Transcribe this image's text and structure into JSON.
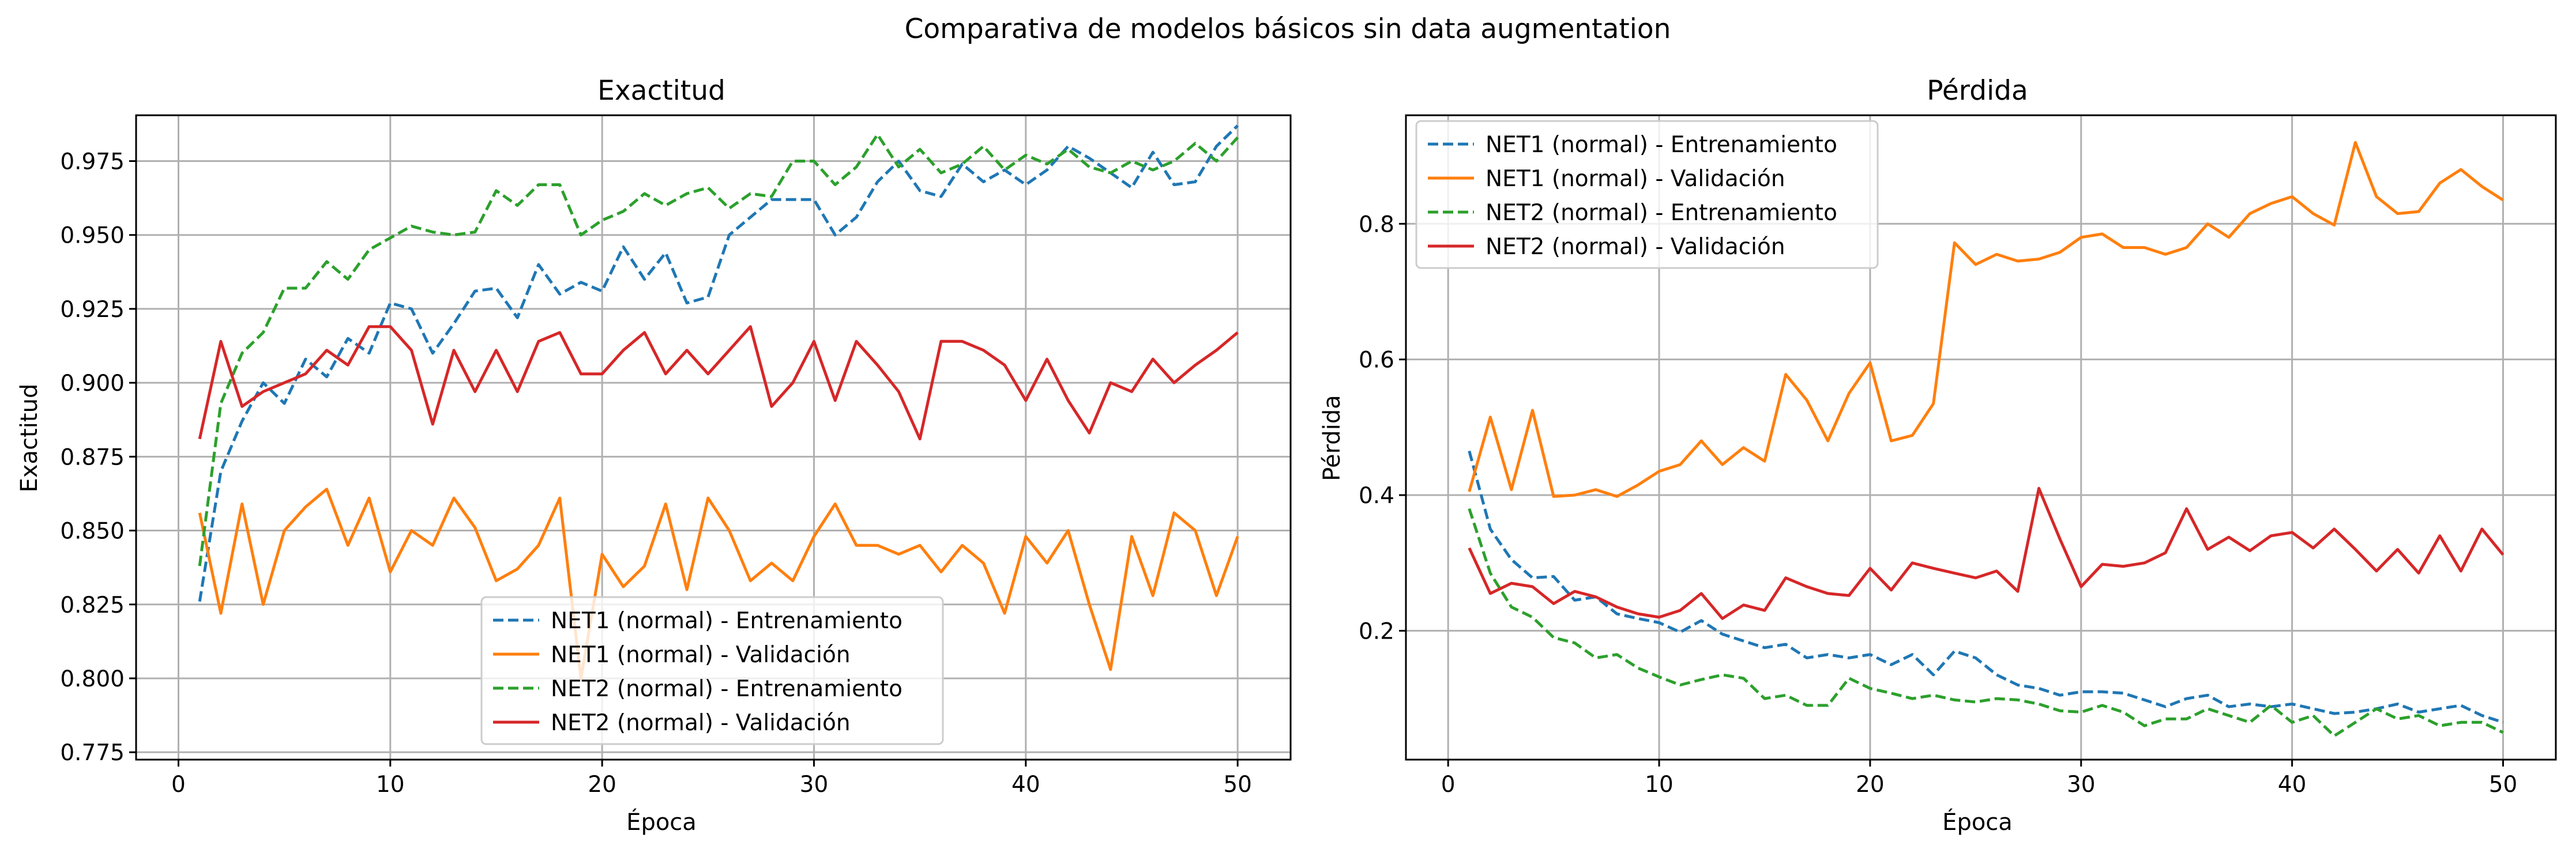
{
  "figure_title": "Comparativa de modelos básicos sin data augmentation",
  "chart_data": [
    {
      "type": "line",
      "title": "Exactitud",
      "xlabel": "Época",
      "ylabel": "Exactitud",
      "xlim": [
        -2,
        52.5
      ],
      "ylim": [
        0.7725,
        0.9905
      ],
      "xticks": [
        0,
        10,
        20,
        30,
        40,
        50
      ],
      "yticks": [
        0.775,
        0.8,
        0.825,
        0.85,
        0.875,
        0.9,
        0.925,
        0.95,
        0.975
      ],
      "ytick_labels": [
        "0.775",
        "0.800",
        "0.825",
        "0.850",
        "0.875",
        "0.900",
        "0.925",
        "0.950",
        "0.975"
      ],
      "grid": true,
      "legend_position": "lower-center",
      "x": [
        1,
        2,
        3,
        4,
        5,
        6,
        7,
        8,
        9,
        10,
        11,
        12,
        13,
        14,
        15,
        16,
        17,
        18,
        19,
        20,
        21,
        22,
        23,
        24,
        25,
        26,
        27,
        28,
        29,
        30,
        31,
        32,
        33,
        34,
        35,
        36,
        37,
        38,
        39,
        40,
        41,
        42,
        43,
        44,
        45,
        46,
        47,
        48,
        49,
        50
      ],
      "series": [
        {
          "name": "NET1 (normal) - Entrenamiento",
          "color": "#1f77b4",
          "dash": true,
          "values": [
            0.826,
            0.87,
            0.887,
            0.9,
            0.893,
            0.908,
            0.902,
            0.915,
            0.91,
            0.927,
            0.925,
            0.91,
            0.92,
            0.931,
            0.932,
            0.922,
            0.94,
            0.93,
            0.934,
            0.931,
            0.946,
            0.935,
            0.944,
            0.927,
            0.929,
            0.95,
            0.956,
            0.962,
            0.962,
            0.962,
            0.95,
            0.956,
            0.968,
            0.975,
            0.965,
            0.963,
            0.974,
            0.968,
            0.972,
            0.967,
            0.972,
            0.98,
            0.976,
            0.971,
            0.966,
            0.978,
            0.967,
            0.968,
            0.98,
            0.987
          ]
        },
        {
          "name": "NET1 (normal) - Validación",
          "color": "#ff7f0e",
          "dash": false,
          "values": [
            0.856,
            0.822,
            0.859,
            0.825,
            0.85,
            0.858,
            0.864,
            0.845,
            0.861,
            0.836,
            0.85,
            0.845,
            0.861,
            0.851,
            0.833,
            0.837,
            0.845,
            0.861,
            0.8,
            0.842,
            0.831,
            0.838,
            0.859,
            0.83,
            0.861,
            0.85,
            0.833,
            0.839,
            0.833,
            0.848,
            0.859,
            0.845,
            0.845,
            0.842,
            0.845,
            0.836,
            0.845,
            0.839,
            0.822,
            0.848,
            0.839,
            0.85,
            0.825,
            0.803,
            0.848,
            0.828,
            0.856,
            0.85,
            0.828,
            0.848
          ]
        },
        {
          "name": "NET2 (normal) - Entrenamiento",
          "color": "#2ca02c",
          "dash": true,
          "values": [
            0.838,
            0.893,
            0.91,
            0.917,
            0.932,
            0.932,
            0.941,
            0.935,
            0.945,
            0.949,
            0.953,
            0.951,
            0.95,
            0.951,
            0.965,
            0.96,
            0.967,
            0.967,
            0.95,
            0.955,
            0.958,
            0.964,
            0.96,
            0.964,
            0.966,
            0.959,
            0.964,
            0.963,
            0.975,
            0.975,
            0.967,
            0.973,
            0.984,
            0.973,
            0.979,
            0.971,
            0.974,
            0.98,
            0.972,
            0.977,
            0.974,
            0.979,
            0.973,
            0.971,
            0.975,
            0.972,
            0.975,
            0.981,
            0.975,
            0.983
          ]
        },
        {
          "name": "NET2 (normal) - Validación",
          "color": "#d62728",
          "dash": false,
          "values": [
            0.881,
            0.914,
            0.892,
            0.897,
            0.9,
            0.903,
            0.911,
            0.906,
            0.919,
            0.919,
            0.911,
            0.886,
            0.911,
            0.897,
            0.911,
            0.897,
            0.914,
            0.917,
            0.903,
            0.903,
            0.911,
            0.917,
            0.903,
            0.911,
            0.903,
            0.911,
            0.919,
            0.892,
            0.9,
            0.914,
            0.894,
            0.914,
            0.906,
            0.897,
            0.881,
            0.914,
            0.914,
            0.911,
            0.906,
            0.894,
            0.908,
            0.894,
            0.883,
            0.9,
            0.897,
            0.908,
            0.9,
            0.906,
            0.911,
            0.917
          ]
        }
      ]
    },
    {
      "type": "line",
      "title": "Pérdida",
      "xlabel": "Época",
      "ylabel": "Pérdida",
      "xlim": [
        -2,
        52.5
      ],
      "ylim": [
        0.01,
        0.96
      ],
      "xticks": [
        0,
        10,
        20,
        30,
        40,
        50
      ],
      "yticks": [
        0.2,
        0.4,
        0.6,
        0.8
      ],
      "ytick_labels": [
        "0.2",
        "0.4",
        "0.6",
        "0.8"
      ],
      "grid": true,
      "legend_position": "upper-left",
      "x": [
        1,
        2,
        3,
        4,
        5,
        6,
        7,
        8,
        9,
        10,
        11,
        12,
        13,
        14,
        15,
        16,
        17,
        18,
        19,
        20,
        21,
        22,
        23,
        24,
        25,
        26,
        27,
        28,
        29,
        30,
        31,
        32,
        33,
        34,
        35,
        36,
        37,
        38,
        39,
        40,
        41,
        42,
        43,
        44,
        45,
        46,
        47,
        48,
        49,
        50
      ],
      "series": [
        {
          "name": "NET1 (normal) - Entrenamiento",
          "color": "#1f77b4",
          "dash": true,
          "values": [
            0.465,
            0.35,
            0.305,
            0.278,
            0.28,
            0.245,
            0.25,
            0.225,
            0.218,
            0.212,
            0.198,
            0.215,
            0.195,
            0.185,
            0.175,
            0.18,
            0.16,
            0.165,
            0.16,
            0.165,
            0.15,
            0.165,
            0.135,
            0.17,
            0.16,
            0.135,
            0.12,
            0.115,
            0.105,
            0.11,
            0.11,
            0.108,
            0.098,
            0.088,
            0.1,
            0.105,
            0.088,
            0.092,
            0.088,
            0.092,
            0.085,
            0.078,
            0.08,
            0.085,
            0.092,
            0.08,
            0.085,
            0.09,
            0.075,
            0.065
          ]
        },
        {
          "name": "NET1 (normal) - Validación",
          "color": "#ff7f0e",
          "dash": false,
          "values": [
            0.405,
            0.515,
            0.408,
            0.525,
            0.398,
            0.4,
            0.408,
            0.398,
            0.415,
            0.435,
            0.445,
            0.48,
            0.445,
            0.47,
            0.45,
            0.578,
            0.54,
            0.48,
            0.55,
            0.595,
            0.48,
            0.488,
            0.535,
            0.772,
            0.74,
            0.755,
            0.745,
            0.748,
            0.758,
            0.78,
            0.785,
            0.765,
            0.765,
            0.755,
            0.765,
            0.8,
            0.78,
            0.815,
            0.83,
            0.84,
            0.815,
            0.798,
            0.92,
            0.84,
            0.815,
            0.818,
            0.86,
            0.88,
            0.855,
            0.835
          ]
        },
        {
          "name": "NET2 (normal) - Entrenamiento",
          "color": "#2ca02c",
          "dash": true,
          "values": [
            0.38,
            0.285,
            0.235,
            0.22,
            0.19,
            0.182,
            0.16,
            0.165,
            0.145,
            0.132,
            0.12,
            0.128,
            0.135,
            0.13,
            0.1,
            0.105,
            0.09,
            0.09,
            0.13,
            0.115,
            0.108,
            0.1,
            0.105,
            0.098,
            0.095,
            0.1,
            0.098,
            0.092,
            0.082,
            0.08,
            0.09,
            0.08,
            0.06,
            0.07,
            0.07,
            0.085,
            0.075,
            0.065,
            0.09,
            0.065,
            0.075,
            0.045,
            0.065,
            0.085,
            0.07,
            0.075,
            0.06,
            0.065,
            0.065,
            0.05
          ]
        },
        {
          "name": "NET2 (normal) - Validación",
          "color": "#d62728",
          "dash": false,
          "values": [
            0.322,
            0.255,
            0.27,
            0.265,
            0.24,
            0.258,
            0.25,
            0.235,
            0.225,
            0.22,
            0.23,
            0.255,
            0.218,
            0.238,
            0.23,
            0.278,
            0.265,
            0.255,
            0.252,
            0.292,
            0.26,
            0.3,
            0.292,
            0.285,
            0.278,
            0.288,
            0.258,
            0.41,
            0.335,
            0.265,
            0.298,
            0.295,
            0.3,
            0.315,
            0.38,
            0.32,
            0.338,
            0.318,
            0.34,
            0.345,
            0.322,
            0.35,
            0.32,
            0.288,
            0.32,
            0.285,
            0.34,
            0.288,
            0.35,
            0.312
          ]
        }
      ]
    }
  ]
}
